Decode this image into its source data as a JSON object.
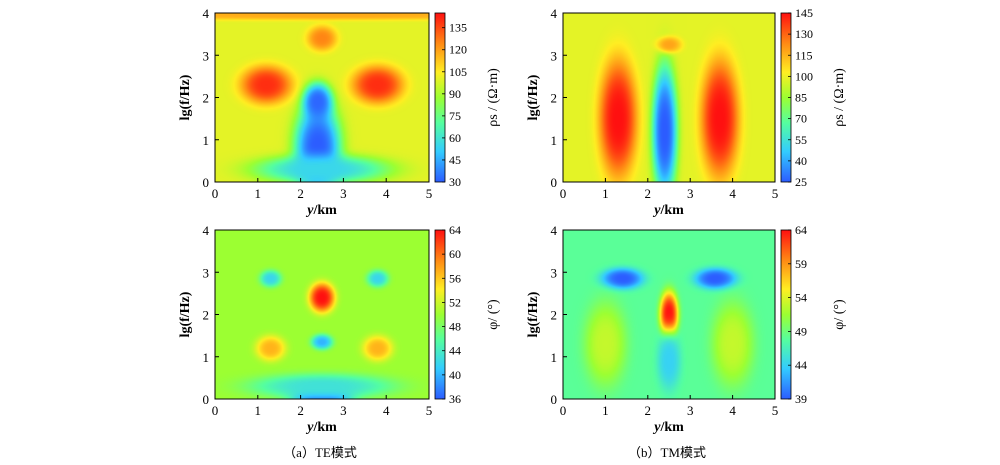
{
  "chart_data": [
    {
      "type": "heatmap",
      "panel": "TE-rho",
      "xlabel_var": "y",
      "xlabel_unit": "/km",
      "ylabel": "lg(f/Hz)",
      "xlim": [
        0,
        5
      ],
      "ylim": [
        0,
        4
      ],
      "xticks": [
        "0",
        "1",
        "2",
        "3",
        "4",
        "5"
      ],
      "yticks": [
        "0",
        "1",
        "2",
        "3",
        "4"
      ],
      "colorbar": {
        "label": "ρs / (Ω·m)",
        "min": 30,
        "max": 145,
        "ticks": [
          "30",
          "45",
          "60",
          "75",
          "90",
          "105",
          "120",
          "135"
        ],
        "tick_values": [
          30,
          45,
          60,
          75,
          90,
          105,
          120,
          135
        ]
      },
      "features": [
        {
          "x": 2.4,
          "y": 0.8,
          "sx": 0.55,
          "sy": 1.1,
          "value": 30
        },
        {
          "x": 2.4,
          "y": 1.9,
          "sx": 0.35,
          "sy": 0.45,
          "value": 32
        },
        {
          "x": 1.2,
          "y": 2.3,
          "sx": 0.6,
          "sy": 0.45,
          "value": 140
        },
        {
          "x": 3.8,
          "y": 2.3,
          "sx": 0.6,
          "sy": 0.45,
          "value": 140
        },
        {
          "x": 2.5,
          "y": 3.4,
          "sx": 0.35,
          "sy": 0.3,
          "value": 125
        },
        {
          "x": 2.5,
          "y": 3.95,
          "sx": 6.0,
          "sy": 0.12,
          "value": 118
        },
        {
          "x": 2.5,
          "y": 0.3,
          "sx": 1.6,
          "sy": 0.35,
          "value": 55
        }
      ],
      "background": 100
    },
    {
      "type": "heatmap",
      "panel": "TM-rho",
      "xlabel_var": "y",
      "xlabel_unit": "/km",
      "ylabel": "lg(f/Hz)",
      "xlim": [
        0,
        5
      ],
      "ylim": [
        0,
        4
      ],
      "xticks": [
        "0",
        "1",
        "2",
        "3",
        "4",
        "5"
      ],
      "yticks": [
        "0",
        "1",
        "2",
        "3",
        "4"
      ],
      "colorbar": {
        "label": "ρs / (Ω·m)",
        "min": 25,
        "max": 145,
        "ticks": [
          "25",
          "40",
          "55",
          "70",
          "85",
          "100",
          "115",
          "130",
          "145"
        ],
        "tick_values": [
          25,
          40,
          55,
          70,
          85,
          100,
          115,
          130,
          145
        ]
      },
      "features": [
        {
          "x": 2.4,
          "y": 1.2,
          "sx": 0.3,
          "sy": 1.6,
          "value": 25
        },
        {
          "x": 1.3,
          "y": 1.5,
          "sx": 0.45,
          "sy": 1.4,
          "value": 145
        },
        {
          "x": 3.7,
          "y": 1.5,
          "sx": 0.45,
          "sy": 1.4,
          "value": 145
        },
        {
          "x": 2.5,
          "y": 3.25,
          "sx": 0.3,
          "sy": 0.2,
          "value": 118
        }
      ],
      "background": 98
    },
    {
      "type": "heatmap",
      "panel": "TE-phi",
      "xlabel_var": "y",
      "xlabel_unit": "/km",
      "ylabel": "lg(f/Hz)",
      "xlim": [
        0,
        5
      ],
      "ylim": [
        0,
        4
      ],
      "xticks": [
        "0",
        "1",
        "2",
        "3",
        "4",
        "5"
      ],
      "yticks": [
        "0",
        "1",
        "2",
        "3",
        "4"
      ],
      "colorbar": {
        "label": "φ/ (°)",
        "min": 36,
        "max": 64,
        "ticks": [
          "36",
          "40",
          "44",
          "48",
          "52",
          "56",
          "60",
          "64"
        ],
        "tick_values": [
          36,
          40,
          44,
          48,
          52,
          56,
          60,
          64
        ]
      },
      "features": [
        {
          "x": 2.5,
          "y": 2.4,
          "sx": 0.3,
          "sy": 0.35,
          "value": 64
        },
        {
          "x": 1.3,
          "y": 2.85,
          "sx": 0.25,
          "sy": 0.2,
          "value": 42
        },
        {
          "x": 3.8,
          "y": 2.85,
          "sx": 0.25,
          "sy": 0.2,
          "value": 42
        },
        {
          "x": 1.3,
          "y": 1.2,
          "sx": 0.35,
          "sy": 0.3,
          "value": 57
        },
        {
          "x": 3.8,
          "y": 1.2,
          "sx": 0.35,
          "sy": 0.3,
          "value": 57
        },
        {
          "x": 2.5,
          "y": 1.35,
          "sx": 0.25,
          "sy": 0.18,
          "value": 40
        },
        {
          "x": 2.5,
          "y": 0.05,
          "sx": 0.7,
          "sy": 0.25,
          "value": 36
        },
        {
          "x": 2.5,
          "y": 0.3,
          "sx": 1.7,
          "sy": 0.3,
          "value": 43
        }
      ],
      "background": 50
    },
    {
      "type": "heatmap",
      "panel": "TM-phi",
      "xlabel_var": "y",
      "xlabel_unit": "/km",
      "ylabel": "lg(f/Hz)",
      "xlim": [
        0,
        5
      ],
      "ylim": [
        0,
        4
      ],
      "xticks": [
        "0",
        "1",
        "2",
        "3",
        "4",
        "5"
      ],
      "yticks": [
        "0",
        "1",
        "2",
        "3",
        "4"
      ],
      "colorbar": {
        "label": "φ/ (°)",
        "min": 39,
        "max": 64,
        "ticks": [
          "39",
          "44",
          "49",
          "54",
          "59",
          "64"
        ],
        "tick_values": [
          39,
          44,
          49,
          54,
          59,
          64
        ]
      },
      "features": [
        {
          "x": 1.4,
          "y": 2.85,
          "sx": 0.5,
          "sy": 0.25,
          "value": 39
        },
        {
          "x": 3.6,
          "y": 2.85,
          "sx": 0.5,
          "sy": 0.25,
          "value": 39
        },
        {
          "x": 2.5,
          "y": 2.0,
          "sx": 0.22,
          "sy": 0.55,
          "value": 64
        },
        {
          "x": 2.5,
          "y": 0.9,
          "sx": 0.28,
          "sy": 0.7,
          "value": 44
        },
        {
          "x": 1.0,
          "y": 1.3,
          "sx": 0.5,
          "sy": 1.0,
          "value": 53
        },
        {
          "x": 4.0,
          "y": 1.3,
          "sx": 0.5,
          "sy": 1.0,
          "value": 53
        }
      ],
      "background": 48
    }
  ],
  "captions": {
    "a": "（a）TE模式",
    "b": "（b）TM模式"
  }
}
